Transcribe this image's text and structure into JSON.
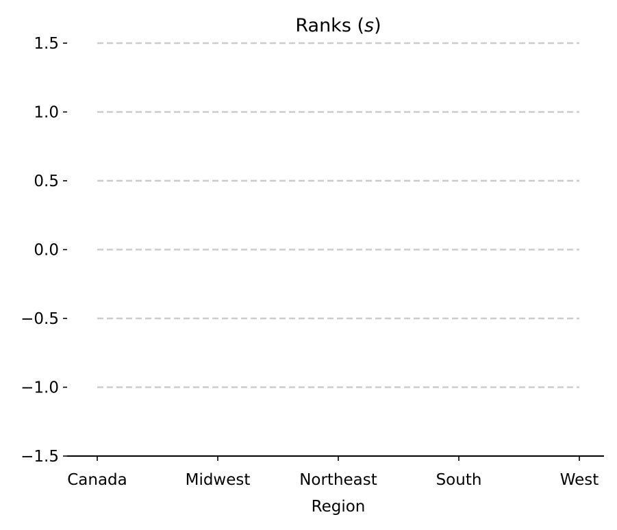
{
  "chart_data": {
    "type": "line",
    "title": "Ranks (",
    "title_symbol": "s",
    "title_close": ")",
    "xlabel": "Region",
    "ylabel": "",
    "categories": [
      "Canada",
      "Midwest",
      "Northeast",
      "South",
      "West"
    ],
    "ylim": [
      -1.5,
      1.5
    ],
    "yticks": [
      -1.5,
      -1.0,
      -0.5,
      0.0,
      0.5,
      1.0,
      1.5
    ],
    "ytick_labels": [
      "−1.5",
      "−1.0",
      "−0.5",
      "0.0",
      "0.5",
      "1.0",
      "1.5"
    ],
    "grid": true,
    "grid_style": "dashed",
    "grid_color": "#cccccc",
    "axis_color": "#000000",
    "series": []
  }
}
